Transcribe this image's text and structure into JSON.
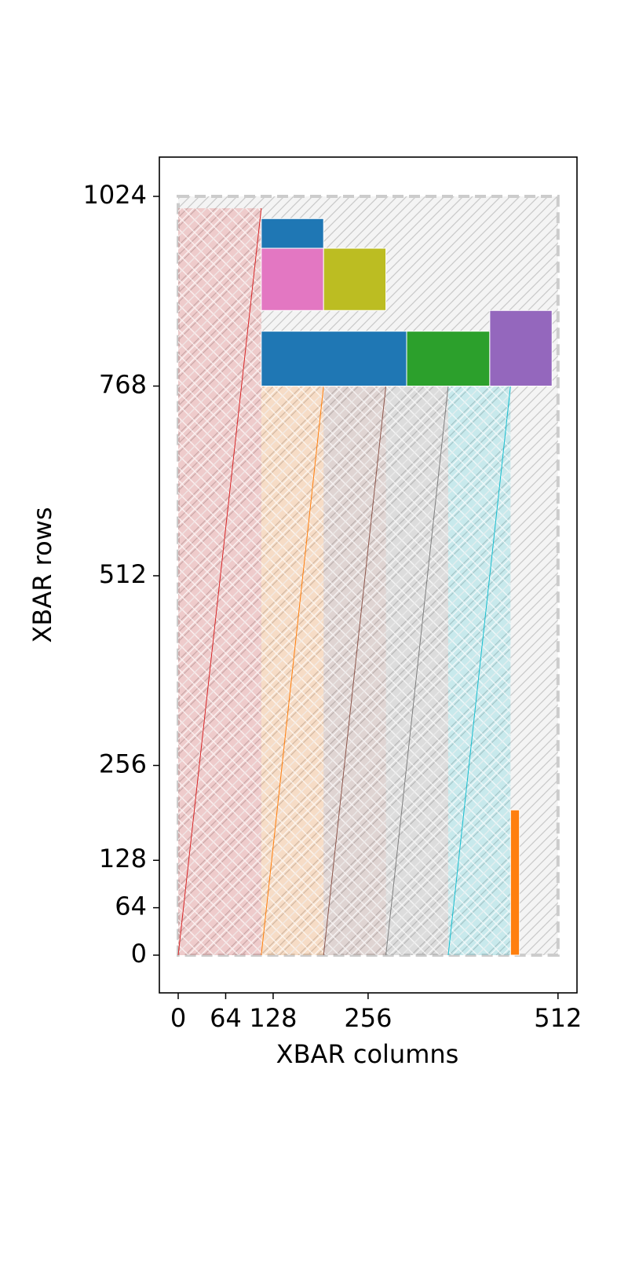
{
  "chart_data": {
    "type": "rects",
    "xlabel": "XBAR columns",
    "ylabel": "XBAR rows",
    "xlim": [
      -25.4,
      537.6
    ],
    "ylim": [
      -50.9,
      1077
    ],
    "xticks": [
      0,
      64,
      128,
      256,
      512
    ],
    "yticks": [
      0,
      64,
      128,
      256,
      512,
      768,
      1024
    ],
    "rects": [
      {
        "x": [
          0,
          512
        ],
        "y": [
          0,
          1024
        ],
        "color": "#cccccc",
        "style": "boundary"
      },
      {
        "x": [
          0,
          112
        ],
        "y": [
          0,
          1008
        ],
        "color": "#d62728",
        "style": "region"
      },
      {
        "x": [
          112,
          196
        ],
        "y": [
          0,
          768
        ],
        "color": "#ff7f0e",
        "style": "region"
      },
      {
        "x": [
          196,
          280
        ],
        "y": [
          0,
          768
        ],
        "color": "#8c564b",
        "style": "region"
      },
      {
        "x": [
          280,
          364
        ],
        "y": [
          0,
          768
        ],
        "color": "#7f7f7f",
        "style": "region"
      },
      {
        "x": [
          364,
          448
        ],
        "y": [
          0,
          768
        ],
        "color": "#17becf",
        "style": "region"
      },
      {
        "x": [
          448,
          460
        ],
        "y": [
          0,
          196
        ],
        "color": "#ff7f0e",
        "style": "solid"
      },
      {
        "x": [
          112,
          308
        ],
        "y": [
          768,
          842
        ],
        "color": "#1f77b4",
        "style": "solid"
      },
      {
        "x": [
          308,
          420
        ],
        "y": [
          768,
          842
        ],
        "color": "#2ca02c",
        "style": "solid"
      },
      {
        "x": [
          420,
          504
        ],
        "y": [
          768,
          870
        ],
        "color": "#9467bd",
        "style": "solid"
      },
      {
        "x": [
          112,
          196
        ],
        "y": [
          870,
          954
        ],
        "color": "#e377c2",
        "style": "solid"
      },
      {
        "x": [
          196,
          280
        ],
        "y": [
          870,
          954
        ],
        "color": "#bcbd22",
        "style": "solid"
      },
      {
        "x": [
          112,
          196
        ],
        "y": [
          954,
          994
        ],
        "color": "#1f77b4",
        "style": "solid"
      }
    ]
  }
}
